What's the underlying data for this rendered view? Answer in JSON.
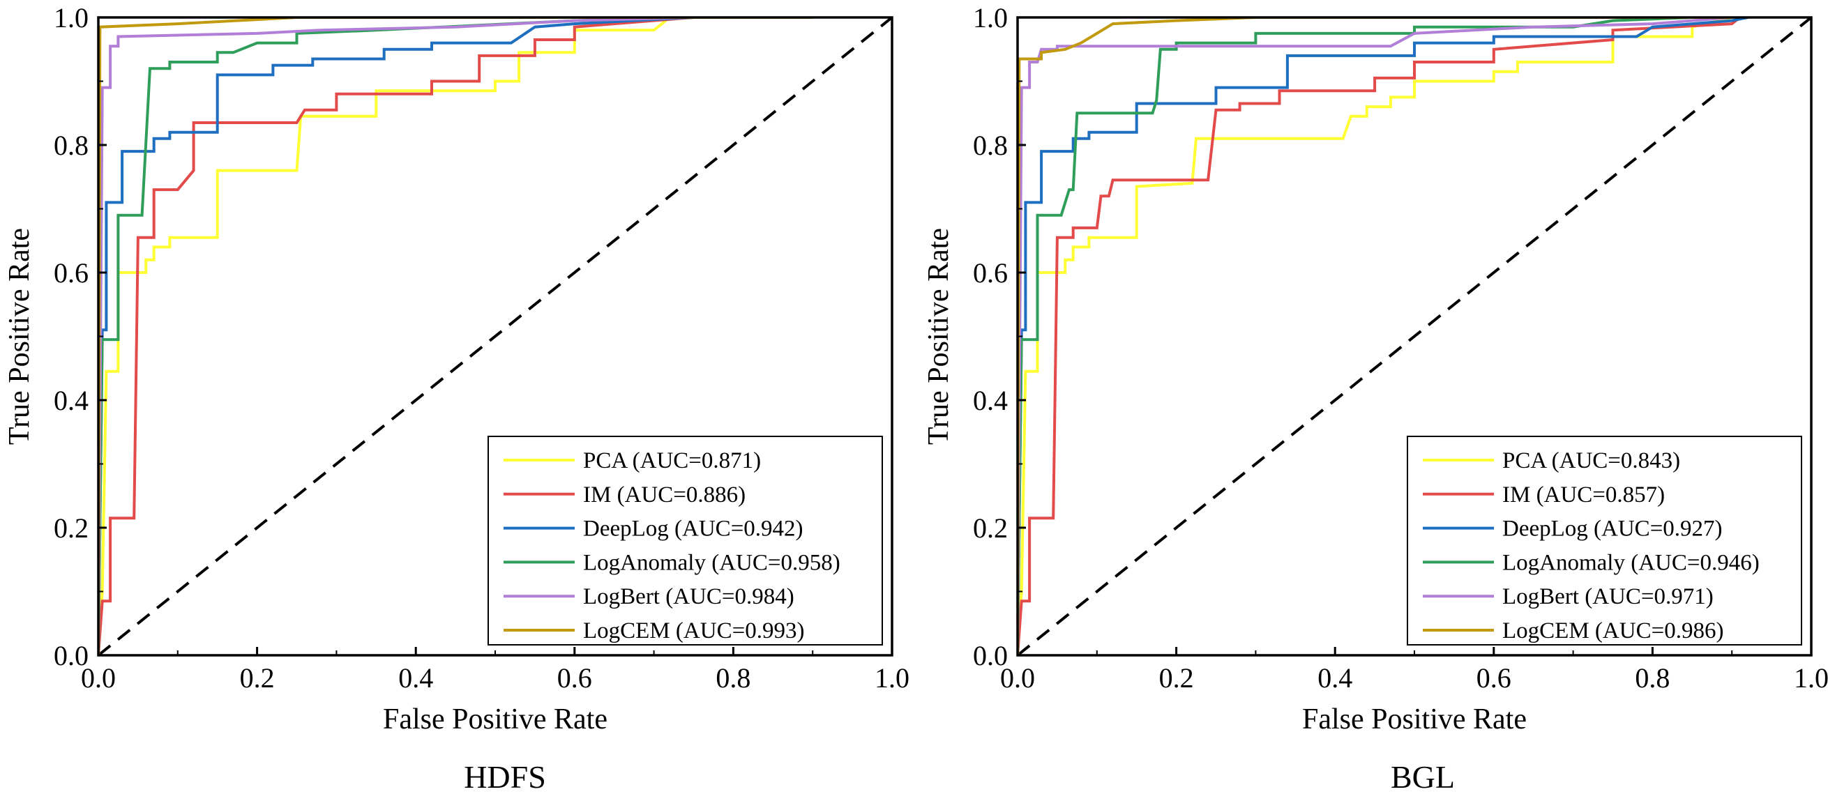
{
  "figure": {
    "panels": [
      {
        "caption": "HDFS"
      },
      {
        "caption": "BGL"
      }
    ]
  },
  "chart_data": [
    {
      "type": "line",
      "title": "HDFS",
      "xlabel": "False Positive Rate",
      "ylabel": "True Positive Rate",
      "xlim": [
        0,
        1
      ],
      "ylim": [
        0,
        1
      ],
      "xticks": [
        "0.0",
        "0.2",
        "0.4",
        "0.6",
        "0.8",
        "1.0"
      ],
      "yticks": [
        "0.0",
        "0.2",
        "0.4",
        "0.6",
        "0.8",
        "1.0"
      ],
      "legend_position": "bottom-right",
      "diagonal": {
        "style": "dashed",
        "color": "#000000",
        "points": [
          [
            0,
            0
          ],
          [
            1,
            1
          ]
        ]
      },
      "series": [
        {
          "name": "PCA (AUC=0.871)",
          "color": "#ffff33",
          "points": [
            [
              0,
              0
            ],
            [
              0.005,
              0.1
            ],
            [
              0.01,
              0.445
            ],
            [
              0.025,
              0.445
            ],
            [
              0.025,
              0.6
            ],
            [
              0.06,
              0.6
            ],
            [
              0.06,
              0.62
            ],
            [
              0.07,
              0.62
            ],
            [
              0.07,
              0.64
            ],
            [
              0.09,
              0.64
            ],
            [
              0.09,
              0.655
            ],
            [
              0.15,
              0.655
            ],
            [
              0.15,
              0.76
            ],
            [
              0.25,
              0.76
            ],
            [
              0.255,
              0.845
            ],
            [
              0.35,
              0.845
            ],
            [
              0.35,
              0.885
            ],
            [
              0.5,
              0.885
            ],
            [
              0.5,
              0.9
            ],
            [
              0.53,
              0.9
            ],
            [
              0.53,
              0.945
            ],
            [
              0.6,
              0.945
            ],
            [
              0.6,
              0.98
            ],
            [
              0.7,
              0.98
            ],
            [
              0.72,
              1.0
            ],
            [
              0.9,
              1.0
            ]
          ]
        },
        {
          "name": "IM (AUC=0.886)",
          "color": "#e34a4a",
          "points": [
            [
              0,
              0
            ],
            [
              0.005,
              0.085
            ],
            [
              0.015,
              0.085
            ],
            [
              0.015,
              0.215
            ],
            [
              0.045,
              0.215
            ],
            [
              0.05,
              0.655
            ],
            [
              0.07,
              0.655
            ],
            [
              0.07,
              0.73
            ],
            [
              0.1,
              0.73
            ],
            [
              0.12,
              0.76
            ],
            [
              0.12,
              0.835
            ],
            [
              0.25,
              0.835
            ],
            [
              0.26,
              0.855
            ],
            [
              0.3,
              0.855
            ],
            [
              0.3,
              0.88
            ],
            [
              0.42,
              0.88
            ],
            [
              0.42,
              0.9
            ],
            [
              0.48,
              0.9
            ],
            [
              0.48,
              0.94
            ],
            [
              0.55,
              0.94
            ],
            [
              0.55,
              0.965
            ],
            [
              0.6,
              0.965
            ],
            [
              0.6,
              0.985
            ],
            [
              0.75,
              1.0
            ]
          ]
        },
        {
          "name": "DeepLog (AUC=0.942)",
          "color": "#1f6fc1",
          "points": [
            [
              0,
              0
            ],
            [
              0.005,
              0.51
            ],
            [
              0.01,
              0.51
            ],
            [
              0.01,
              0.71
            ],
            [
              0.03,
              0.71
            ],
            [
              0.03,
              0.79
            ],
            [
              0.07,
              0.79
            ],
            [
              0.07,
              0.81
            ],
            [
              0.09,
              0.81
            ],
            [
              0.09,
              0.82
            ],
            [
              0.15,
              0.82
            ],
            [
              0.15,
              0.91
            ],
            [
              0.22,
              0.91
            ],
            [
              0.22,
              0.925
            ],
            [
              0.27,
              0.925
            ],
            [
              0.27,
              0.935
            ],
            [
              0.36,
              0.935
            ],
            [
              0.36,
              0.95
            ],
            [
              0.42,
              0.95
            ],
            [
              0.42,
              0.96
            ],
            [
              0.52,
              0.96
            ],
            [
              0.55,
              0.985
            ],
            [
              0.6,
              0.99
            ],
            [
              0.75,
              1.0
            ]
          ]
        },
        {
          "name": "LogAnomaly (AUC=0.958)",
          "color": "#2f9e5b",
          "points": [
            [
              0,
              0
            ],
            [
              0.005,
              0.495
            ],
            [
              0.025,
              0.495
            ],
            [
              0.025,
              0.69
            ],
            [
              0.055,
              0.69
            ],
            [
              0.065,
              0.92
            ],
            [
              0.09,
              0.92
            ],
            [
              0.09,
              0.93
            ],
            [
              0.15,
              0.93
            ],
            [
              0.15,
              0.945
            ],
            [
              0.17,
              0.945
            ],
            [
              0.2,
              0.96
            ],
            [
              0.25,
              0.96
            ],
            [
              0.25,
              0.975
            ],
            [
              0.35,
              0.98
            ],
            [
              0.6,
              0.995
            ],
            [
              0.75,
              1.0
            ]
          ]
        },
        {
          "name": "LogBert (AUC=0.984)",
          "color": "#b27fd8",
          "points": [
            [
              0,
              0
            ],
            [
              0.005,
              0.89
            ],
            [
              0.015,
              0.89
            ],
            [
              0.015,
              0.955
            ],
            [
              0.025,
              0.955
            ],
            [
              0.025,
              0.97
            ],
            [
              0.2,
              0.975
            ],
            [
              0.28,
              0.98
            ],
            [
              0.45,
              0.985
            ],
            [
              0.6,
              0.995
            ],
            [
              0.75,
              1.0
            ]
          ]
        },
        {
          "name": "LogCEM (AUC=0.993)",
          "color": "#c19a0f",
          "points": [
            [
              0,
              0
            ],
            [
              0.002,
              0.985
            ],
            [
              0.1,
              0.99
            ],
            [
              0.25,
              1.0
            ],
            [
              0.9,
              1.0
            ]
          ]
        }
      ]
    },
    {
      "type": "line",
      "title": "BGL",
      "xlabel": "False Positive Rate",
      "ylabel": "True Positive Rate",
      "xlim": [
        0,
        1
      ],
      "ylim": [
        0,
        1
      ],
      "xticks": [
        "0.0",
        "0.2",
        "0.4",
        "0.6",
        "0.8",
        "1.0"
      ],
      "yticks": [
        "0.0",
        "0.2",
        "0.4",
        "0.6",
        "0.8",
        "1.0"
      ],
      "legend_position": "bottom-right",
      "diagonal": {
        "style": "dashed",
        "color": "#000000",
        "points": [
          [
            0,
            0
          ],
          [
            1,
            1
          ]
        ]
      },
      "series": [
        {
          "name": "PCA (AUC=0.843)",
          "color": "#ffff33",
          "points": [
            [
              0,
              0
            ],
            [
              0.005,
              0.1
            ],
            [
              0.01,
              0.445
            ],
            [
              0.025,
              0.445
            ],
            [
              0.025,
              0.6
            ],
            [
              0.06,
              0.6
            ],
            [
              0.06,
              0.62
            ],
            [
              0.07,
              0.62
            ],
            [
              0.07,
              0.64
            ],
            [
              0.09,
              0.64
            ],
            [
              0.09,
              0.655
            ],
            [
              0.15,
              0.655
            ],
            [
              0.15,
              0.735
            ],
            [
              0.22,
              0.74
            ],
            [
              0.225,
              0.81
            ],
            [
              0.41,
              0.81
            ],
            [
              0.42,
              0.845
            ],
            [
              0.44,
              0.845
            ],
            [
              0.44,
              0.86
            ],
            [
              0.47,
              0.86
            ],
            [
              0.47,
              0.875
            ],
            [
              0.5,
              0.875
            ],
            [
              0.5,
              0.9
            ],
            [
              0.6,
              0.9
            ],
            [
              0.6,
              0.915
            ],
            [
              0.63,
              0.915
            ],
            [
              0.63,
              0.93
            ],
            [
              0.75,
              0.93
            ],
            [
              0.75,
              0.97
            ],
            [
              0.85,
              0.97
            ],
            [
              0.85,
              0.985
            ],
            [
              0.9,
              1.0
            ]
          ]
        },
        {
          "name": "IM (AUC=0.857)",
          "color": "#e34a4a",
          "points": [
            [
              0,
              0
            ],
            [
              0.005,
              0.085
            ],
            [
              0.015,
              0.085
            ],
            [
              0.015,
              0.215
            ],
            [
              0.045,
              0.215
            ],
            [
              0.05,
              0.655
            ],
            [
              0.07,
              0.655
            ],
            [
              0.07,
              0.67
            ],
            [
              0.1,
              0.67
            ],
            [
              0.105,
              0.72
            ],
            [
              0.115,
              0.72
            ],
            [
              0.12,
              0.745
            ],
            [
              0.24,
              0.745
            ],
            [
              0.25,
              0.855
            ],
            [
              0.28,
              0.855
            ],
            [
              0.28,
              0.865
            ],
            [
              0.33,
              0.865
            ],
            [
              0.33,
              0.885
            ],
            [
              0.45,
              0.885
            ],
            [
              0.45,
              0.905
            ],
            [
              0.5,
              0.905
            ],
            [
              0.5,
              0.93
            ],
            [
              0.6,
              0.93
            ],
            [
              0.6,
              0.95
            ],
            [
              0.75,
              0.965
            ],
            [
              0.75,
              0.98
            ],
            [
              0.9,
              0.99
            ],
            [
              0.91,
              1.0
            ]
          ]
        },
        {
          "name": "DeepLog (AUC=0.927)",
          "color": "#1f6fc1",
          "points": [
            [
              0,
              0
            ],
            [
              0.005,
              0.51
            ],
            [
              0.01,
              0.51
            ],
            [
              0.01,
              0.71
            ],
            [
              0.03,
              0.71
            ],
            [
              0.03,
              0.79
            ],
            [
              0.07,
              0.79
            ],
            [
              0.07,
              0.81
            ],
            [
              0.09,
              0.81
            ],
            [
              0.09,
              0.82
            ],
            [
              0.15,
              0.82
            ],
            [
              0.15,
              0.865
            ],
            [
              0.25,
              0.865
            ],
            [
              0.25,
              0.89
            ],
            [
              0.34,
              0.89
            ],
            [
              0.34,
              0.94
            ],
            [
              0.5,
              0.94
            ],
            [
              0.5,
              0.96
            ],
            [
              0.6,
              0.96
            ],
            [
              0.6,
              0.97
            ],
            [
              0.78,
              0.97
            ],
            [
              0.8,
              0.985
            ],
            [
              0.9,
              0.995
            ],
            [
              0.92,
              1.0
            ]
          ]
        },
        {
          "name": "LogAnomaly (AUC=0.946)",
          "color": "#2f9e5b",
          "points": [
            [
              0,
              0
            ],
            [
              0.005,
              0.495
            ],
            [
              0.025,
              0.495
            ],
            [
              0.025,
              0.69
            ],
            [
              0.055,
              0.69
            ],
            [
              0.065,
              0.73
            ],
            [
              0.07,
              0.73
            ],
            [
              0.075,
              0.85
            ],
            [
              0.17,
              0.85
            ],
            [
              0.175,
              0.87
            ],
            [
              0.18,
              0.95
            ],
            [
              0.2,
              0.95
            ],
            [
              0.2,
              0.96
            ],
            [
              0.3,
              0.96
            ],
            [
              0.3,
              0.975
            ],
            [
              0.5,
              0.975
            ],
            [
              0.5,
              0.985
            ],
            [
              0.7,
              0.985
            ],
            [
              0.75,
              0.995
            ],
            [
              0.85,
              1.0
            ]
          ]
        },
        {
          "name": "LogBert (AUC=0.971)",
          "color": "#b27fd8",
          "points": [
            [
              0,
              0
            ],
            [
              0.005,
              0.89
            ],
            [
              0.015,
              0.89
            ],
            [
              0.015,
              0.93
            ],
            [
              0.025,
              0.93
            ],
            [
              0.03,
              0.95
            ],
            [
              0.05,
              0.95
            ],
            [
              0.05,
              0.955
            ],
            [
              0.47,
              0.955
            ],
            [
              0.5,
              0.975
            ],
            [
              0.65,
              0.985
            ],
            [
              0.8,
              0.99
            ],
            [
              0.85,
              0.995
            ],
            [
              0.9,
              1.0
            ]
          ]
        },
        {
          "name": "LogCEM (AUC=0.986)",
          "color": "#c19a0f",
          "points": [
            [
              0,
              0
            ],
            [
              0.002,
              0.935
            ],
            [
              0.03,
              0.935
            ],
            [
              0.03,
              0.945
            ],
            [
              0.06,
              0.95
            ],
            [
              0.08,
              0.96
            ],
            [
              0.1,
              0.975
            ],
            [
              0.12,
              0.99
            ],
            [
              0.2,
              0.995
            ],
            [
              0.3,
              1.0
            ],
            [
              0.9,
              1.0
            ]
          ]
        }
      ]
    }
  ]
}
